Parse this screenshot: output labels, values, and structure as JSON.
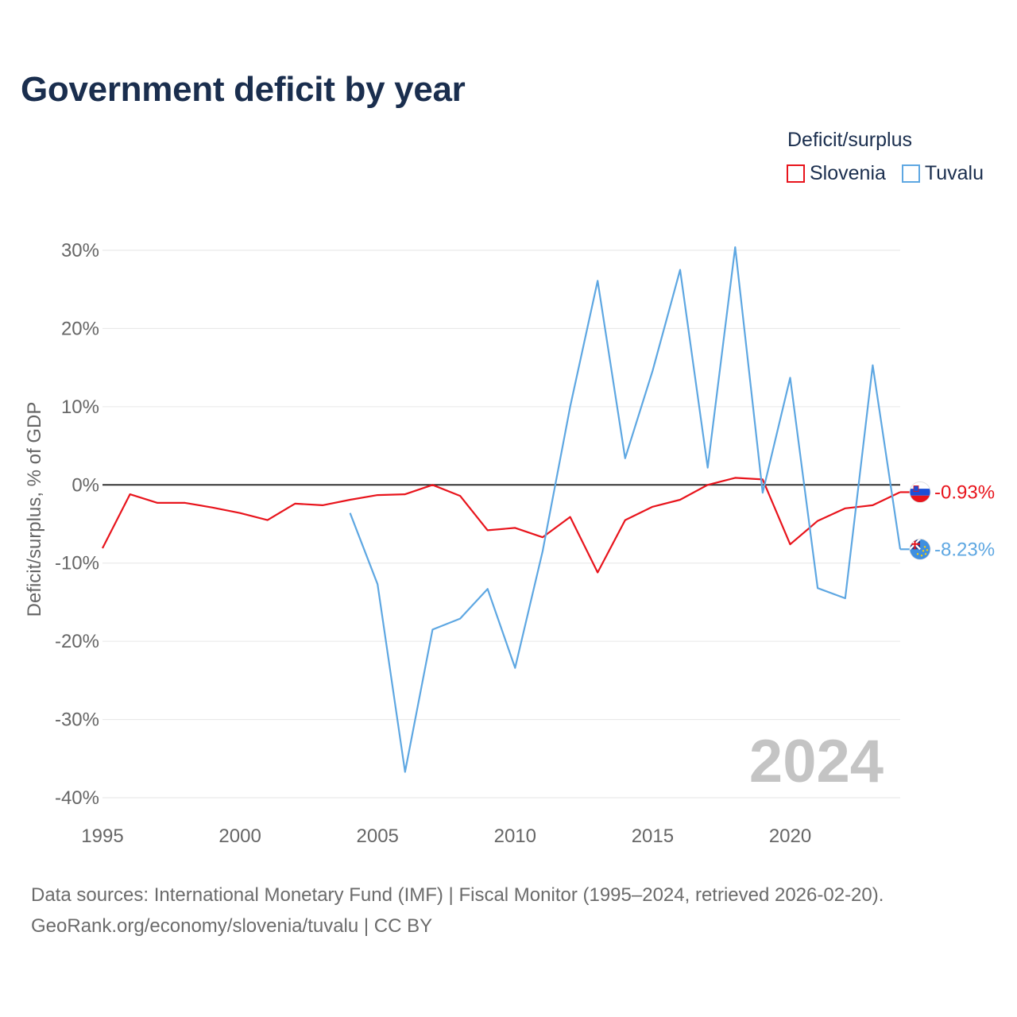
{
  "title": "Government deficit by year",
  "legend": {
    "title": "Deficit/surplus",
    "items": [
      {
        "label": "Slovenia",
        "color": "#e8141c"
      },
      {
        "label": "Tuvalu",
        "color": "#5ea7e2"
      }
    ]
  },
  "chart_data": {
    "type": "line",
    "title": "Government deficit by year",
    "xlabel": "",
    "ylabel": "Deficit/surplus, % of GDP",
    "xlim": [
      1995,
      2024
    ],
    "ylim": [
      -40,
      30
    ],
    "x_ticks": [
      1995,
      2000,
      2005,
      2010,
      2015,
      2020
    ],
    "x_tick_labels": [
      "1995",
      "2000",
      "2005",
      "2010",
      "2015",
      "2020"
    ],
    "y_ticks": [
      30,
      20,
      10,
      0,
      -10,
      -20,
      -30,
      -40
    ],
    "y_tick_labels": [
      "30%",
      "20%",
      "10%",
      "0%",
      "-10%",
      "-20%",
      "-30%",
      "-40%"
    ],
    "grid": true,
    "year_watermark": "2024",
    "series": [
      {
        "name": "Slovenia",
        "color": "#e8141c",
        "x": [
          1995,
          1996,
          1997,
          1998,
          1999,
          2000,
          2001,
          2002,
          2003,
          2004,
          2005,
          2006,
          2007,
          2008,
          2009,
          2010,
          2011,
          2012,
          2013,
          2014,
          2015,
          2016,
          2017,
          2018,
          2019,
          2020,
          2021,
          2022,
          2023,
          2024
        ],
        "values": [
          -8.1,
          -1.2,
          -2.3,
          -2.3,
          -2.9,
          -3.6,
          -4.5,
          -2.4,
          -2.6,
          -1.9,
          -1.3,
          -1.2,
          0.0,
          -1.4,
          -5.8,
          -5.5,
          -6.7,
          -4.1,
          -11.2,
          -4.5,
          -2.8,
          -1.9,
          0.0,
          0.9,
          0.7,
          -7.6,
          -4.6,
          -3.0,
          -2.6,
          -0.93
        ],
        "end_label": "-0.93%"
      },
      {
        "name": "Tuvalu",
        "color": "#5ea7e2",
        "x": [
          2004,
          2005,
          2006,
          2007,
          2008,
          2009,
          2010,
          2011,
          2012,
          2013,
          2014,
          2015,
          2016,
          2017,
          2018,
          2019,
          2020,
          2021,
          2022,
          2023,
          2024
        ],
        "values": [
          -3.6,
          -12.7,
          -36.7,
          -18.5,
          -17.1,
          -13.3,
          -23.4,
          -8.5,
          10.0,
          26.1,
          3.4,
          14.6,
          27.5,
          2.2,
          30.4,
          -1.0,
          13.7,
          -13.2,
          -14.5,
          15.3,
          -8.23
        ],
        "end_label": "-8.23%"
      }
    ]
  },
  "footer": {
    "line1": "Data sources: International Monetary Fund (IMF) | Fiscal Monitor (1995–2024, retrieved 2026-02-20).",
    "line2": "GeoRank.org/economy/slovenia/tuvalu | CC BY"
  }
}
